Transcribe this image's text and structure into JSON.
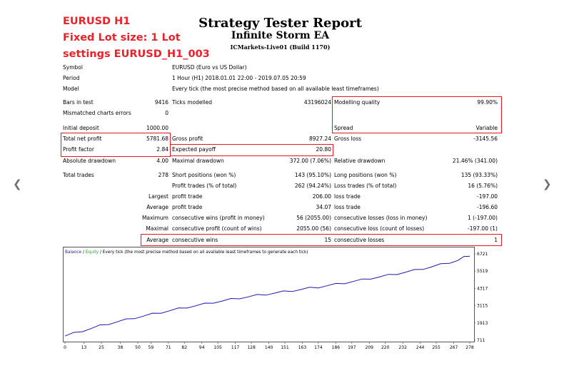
{
  "annotations": {
    "line1": "EURUSD H1",
    "line2": "Fixed Lot size: 1 Lot",
    "line3": "settings EURUSD_H1_003"
  },
  "report": {
    "title": "Strategy Tester Report",
    "subtitle": "Infinite Storm EA",
    "server": "ICMarkets-Live01 (Build 1170)"
  },
  "info": {
    "symbol_label": "Symbol",
    "symbol_value": "EURUSD (Euro vs US Dollar)",
    "period_label": "Period",
    "period_value": "1 Hour (H1) 2018.01.01 22:00 - 2019.07.05 20:59",
    "model_label": "Model",
    "model_value": "Every tick (the most precise method based on all available least timeframes)"
  },
  "stats": {
    "bars_label": "Bars in test",
    "bars_value": "9416",
    "ticks_label": "Ticks modelled",
    "ticks_value": "43196024",
    "mq_label": "Modelling quality",
    "mq_value": "99.90%",
    "mismatched_label": "Mismatched charts errors",
    "mismatched_value": "0",
    "deposit_label": "Initial deposit",
    "deposit_value": "1000.00",
    "spread_label": "Spread",
    "spread_value": "Variable",
    "tnp_label": "Total net profit",
    "tnp_value": "5781.68",
    "gp_label": "Gross profit",
    "gp_value": "8927.24",
    "gl_label": "Gross loss",
    "gl_value": "-3145.56",
    "pf_label": "Profit factor",
    "pf_value": "2.84",
    "ep_label": "Expected payoff",
    "ep_value": "20.80",
    "add_label": "Absolute drawdown",
    "add_value": "4.00",
    "mdd_label": "Maximal drawdown",
    "mdd_value": "372.00 (7.06%)",
    "rdd_label": "Relative drawdown",
    "rdd_value": "21.46% (341.00)",
    "tt_label": "Total trades",
    "tt_value": "278",
    "sp_label": "Short positions (won %)",
    "sp_value": "143 (95.10%)",
    "lp_label": "Long positions (won %)",
    "lp_value": "135 (93.33%)",
    "pt_label": "Profit trades (% of total)",
    "pt_value": "262 (94.24%)",
    "lt_label": "Loss trades (% of total)",
    "lt_value": "16 (5.76%)",
    "largest_label": "Largest",
    "largest_pt_label": "profit trade",
    "largest_pt_value": "206.00",
    "largest_lt_label": "loss trade",
    "largest_lt_value": "-197.00",
    "average_label": "Average",
    "average_pt_label": "profit trade",
    "average_pt_value": "34.07",
    "average_lt_label": "loss trade",
    "average_lt_value": "-196.60",
    "maximum_label": "Maximum",
    "max_cw_label": "consecutive wins (profit in money)",
    "max_cw_value": "56 (2055.00)",
    "max_cl_label": "consecutive losses (loss in money)",
    "max_cl_value": "1 (-197.00)",
    "maximal_label": "Maximal",
    "maximal_cp_label": "consecutive profit (count of wins)",
    "maximal_cp_value": "2055.00 (56)",
    "maximal_cl_label": "consecutive loss (count of losses)",
    "maximal_cl_value": "-197.00 (1)",
    "avg_label": "Average",
    "avg_cw_label": "consecutive wins",
    "avg_cw_value": "15",
    "avg_cl_label": "consecutive losses",
    "avg_cl_value": "1"
  },
  "chart_data": {
    "type": "line",
    "legend_prefix": "Balance",
    "legend_sep1": " / ",
    "legend_equity": "Equity",
    "legend_suffix": " / Every tick (the most precise method based on all available least timeframes to generate each tick)",
    "balance_color": "#1a1aaa",
    "equity_color": "#2ca02c",
    "x_ticks": [
      "0",
      "13",
      "25",
      "38",
      "50",
      "59",
      "71",
      "82",
      "94",
      "105",
      "117",
      "128",
      "140",
      "151",
      "163",
      "174",
      "186",
      "197",
      "209",
      "220",
      "232",
      "244",
      "255",
      "267",
      "278"
    ],
    "x_tick_values": [
      0,
      13,
      25,
      38,
      50,
      59,
      71,
      82,
      94,
      105,
      117,
      128,
      140,
      151,
      163,
      174,
      186,
      197,
      209,
      220,
      232,
      244,
      255,
      267,
      278
    ],
    "y_ticks": [
      "6721",
      "5519",
      "4317",
      "3115",
      "1913",
      "711"
    ],
    "y_tick_values": [
      6721,
      5519,
      4317,
      3115,
      1913,
      711
    ],
    "xlim": [
      0,
      278
    ],
    "ylim": [
      711,
      6721
    ],
    "series": [
      {
        "values": [
          [
            0,
            1000
          ],
          [
            6,
            1180
          ],
          [
            12,
            1350
          ],
          [
            18,
            1520
          ],
          [
            24,
            1700
          ],
          [
            30,
            1850
          ],
          [
            36,
            1990
          ],
          [
            42,
            2120
          ],
          [
            48,
            2260
          ],
          [
            54,
            2390
          ],
          [
            60,
            2520
          ],
          [
            66,
            2640
          ],
          [
            72,
            2760
          ],
          [
            78,
            2880
          ],
          [
            84,
            3000
          ],
          [
            90,
            3110
          ],
          [
            96,
            3220
          ],
          [
            102,
            3340
          ],
          [
            108,
            3440
          ],
          [
            114,
            3540
          ],
          [
            120,
            3640
          ],
          [
            126,
            3730
          ],
          [
            132,
            3820
          ],
          [
            138,
            3900
          ],
          [
            144,
            3990
          ],
          [
            150,
            4070
          ],
          [
            156,
            4150
          ],
          [
            162,
            4240
          ],
          [
            168,
            4320
          ],
          [
            174,
            4400
          ],
          [
            180,
            4500
          ],
          [
            186,
            4590
          ],
          [
            192,
            4690
          ],
          [
            198,
            4800
          ],
          [
            204,
            4900
          ],
          [
            210,
            5010
          ],
          [
            216,
            5110
          ],
          [
            222,
            5220
          ],
          [
            228,
            5330
          ],
          [
            234,
            5450
          ],
          [
            240,
            5560
          ],
          [
            246,
            5690
          ],
          [
            252,
            5820
          ],
          [
            258,
            5960
          ],
          [
            264,
            6110
          ],
          [
            270,
            6270
          ],
          [
            274,
            6470
          ],
          [
            278,
            6600
          ]
        ]
      }
    ]
  }
}
